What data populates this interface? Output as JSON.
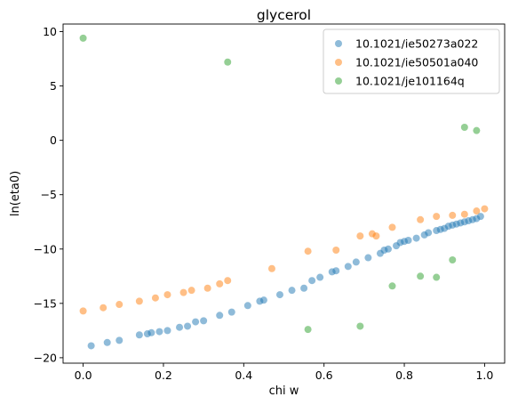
{
  "chart_data": {
    "type": "scatter",
    "title": "glycerol",
    "xlabel": "chi w",
    "ylabel": "ln(eta0)",
    "xlim": [
      -0.05,
      1.05
    ],
    "ylim": [
      -20.5,
      10.7
    ],
    "xticks": [
      0.0,
      0.2,
      0.4,
      0.6,
      0.8,
      1.0
    ],
    "xtick_labels": [
      "0.0",
      "0.2",
      "0.4",
      "0.6",
      "0.8",
      "1.0"
    ],
    "yticks": [
      -20,
      -15,
      -10,
      -5,
      0,
      5,
      10
    ],
    "ytick_labels": [
      "−20",
      "−15",
      "−10",
      "−5",
      "0",
      "5",
      "10"
    ],
    "legend_position": "top-right",
    "grid": false,
    "series": [
      {
        "name": "10.1021/ie50273a022",
        "color": "#1f77b4",
        "points": [
          [
            0.02,
            -18.9
          ],
          [
            0.06,
            -18.6
          ],
          [
            0.09,
            -18.4
          ],
          [
            0.14,
            -17.9
          ],
          [
            0.16,
            -17.8
          ],
          [
            0.17,
            -17.7
          ],
          [
            0.19,
            -17.6
          ],
          [
            0.21,
            -17.5
          ],
          [
            0.24,
            -17.2
          ],
          [
            0.26,
            -17.1
          ],
          [
            0.28,
            -16.7
          ],
          [
            0.3,
            -16.6
          ],
          [
            0.34,
            -16.1
          ],
          [
            0.37,
            -15.8
          ],
          [
            0.41,
            -15.2
          ],
          [
            0.44,
            -14.8
          ],
          [
            0.45,
            -14.7
          ],
          [
            0.49,
            -14.2
          ],
          [
            0.52,
            -13.8
          ],
          [
            0.55,
            -13.6
          ],
          [
            0.57,
            -12.9
          ],
          [
            0.59,
            -12.6
          ],
          [
            0.62,
            -12.1
          ],
          [
            0.63,
            -12.0
          ],
          [
            0.66,
            -11.6
          ],
          [
            0.68,
            -11.2
          ],
          [
            0.71,
            -10.8
          ],
          [
            0.74,
            -10.4
          ],
          [
            0.75,
            -10.1
          ],
          [
            0.76,
            -10.0
          ],
          [
            0.78,
            -9.7
          ],
          [
            0.79,
            -9.4
          ],
          [
            0.8,
            -9.3
          ],
          [
            0.81,
            -9.2
          ],
          [
            0.83,
            -9.0
          ],
          [
            0.85,
            -8.7
          ],
          [
            0.86,
            -8.5
          ],
          [
            0.88,
            -8.3
          ],
          [
            0.89,
            -8.2
          ],
          [
            0.9,
            -8.1
          ],
          [
            0.91,
            -7.9
          ],
          [
            0.92,
            -7.8
          ],
          [
            0.93,
            -7.7
          ],
          [
            0.94,
            -7.6
          ],
          [
            0.95,
            -7.5
          ],
          [
            0.96,
            -7.4
          ],
          [
            0.97,
            -7.3
          ],
          [
            0.98,
            -7.2
          ],
          [
            0.99,
            -7.0
          ]
        ]
      },
      {
        "name": "10.1021/ie50501a040",
        "color": "#ff7f0e",
        "points": [
          [
            0.0,
            -15.7
          ],
          [
            0.05,
            -15.4
          ],
          [
            0.09,
            -15.1
          ],
          [
            0.14,
            -14.8
          ],
          [
            0.18,
            -14.5
          ],
          [
            0.21,
            -14.2
          ],
          [
            0.25,
            -14.0
          ],
          [
            0.27,
            -13.8
          ],
          [
            0.31,
            -13.6
          ],
          [
            0.34,
            -13.2
          ],
          [
            0.36,
            -12.9
          ],
          [
            0.47,
            -11.8
          ],
          [
            0.56,
            -10.2
          ],
          [
            0.63,
            -10.1
          ],
          [
            0.69,
            -8.8
          ],
          [
            0.72,
            -8.6
          ],
          [
            0.73,
            -8.8
          ],
          [
            0.77,
            -8.0
          ],
          [
            0.84,
            -7.3
          ],
          [
            0.88,
            -7.0
          ],
          [
            0.92,
            -6.9
          ],
          [
            0.95,
            -6.8
          ],
          [
            0.98,
            -6.5
          ],
          [
            1.0,
            -6.3
          ]
        ]
      },
      {
        "name": "10.1021/je101164q",
        "color": "#2ca02c",
        "points": [
          [
            0.0,
            9.4
          ],
          [
            0.36,
            7.2
          ],
          [
            0.56,
            -17.4
          ],
          [
            0.69,
            -17.1
          ],
          [
            0.77,
            -13.4
          ],
          [
            0.84,
            -12.5
          ],
          [
            0.88,
            -12.6
          ],
          [
            0.92,
            -11.0
          ],
          [
            0.95,
            1.2
          ],
          [
            0.98,
            0.9
          ]
        ]
      }
    ]
  }
}
